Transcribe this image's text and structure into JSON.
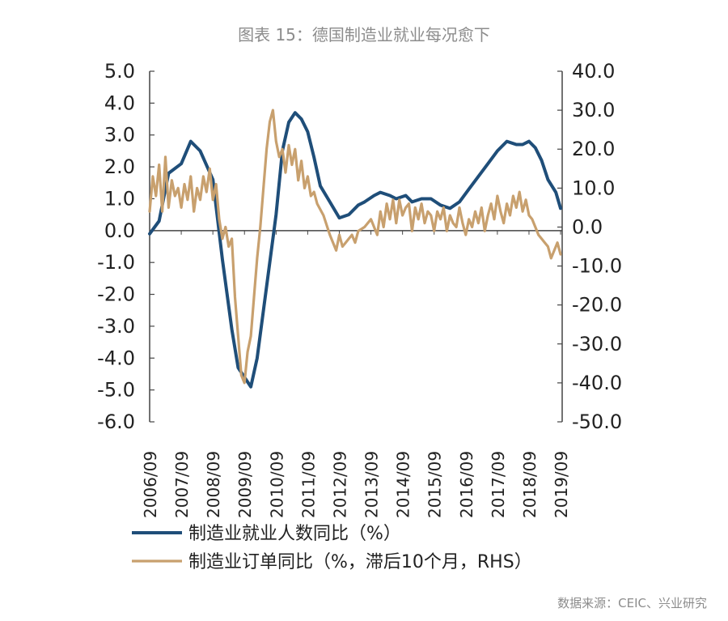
{
  "title": "图表 15：德国制造业就业每况愈下",
  "source": "数据来源：CEIC、兴业研究",
  "chart_data": {
    "type": "line",
    "title": "图表 15：德国制造业就业每况愈下",
    "x_ticks": [
      "2006/09",
      "2007/09",
      "2008/09",
      "2009/09",
      "2010/09",
      "2011/09",
      "2012/09",
      "2013/09",
      "2014/09",
      "2015/09",
      "2016/09",
      "2017/09",
      "2018/09",
      "2019/09"
    ],
    "y_left": {
      "min": -6.0,
      "max": 5.0,
      "ticks": [
        "5.0",
        "4.0",
        "3.0",
        "2.0",
        "1.0",
        "0.0",
        "-1.0",
        "-2.0",
        "-3.0",
        "-4.0",
        "-5.0",
        "-6.0"
      ]
    },
    "y_right": {
      "min": -50.0,
      "max": 40.0,
      "ticks": [
        "40.0",
        "30.0",
        "20.0",
        "10.0",
        "0.0",
        "-10.0",
        "-20.0",
        "-30.0",
        "-40.0",
        "-50.0"
      ]
    },
    "series": [
      {
        "name": "制造业就业人数同比（%）",
        "axis": "left",
        "color": "#1f4e79",
        "x": [
          2006.7,
          2007.0,
          2007.3,
          2007.7,
          2008.0,
          2008.3,
          2008.7,
          2009.0,
          2009.3,
          2009.5,
          2009.7,
          2009.9,
          2010.1,
          2010.3,
          2010.5,
          2010.7,
          2010.9,
          2011.1,
          2011.3,
          2011.5,
          2011.7,
          2011.9,
          2012.1,
          2012.4,
          2012.7,
          2013.0,
          2013.3,
          2013.5,
          2013.8,
          2014.0,
          2014.3,
          2014.5,
          2014.8,
          2015.0,
          2015.3,
          2015.6,
          2015.9,
          2016.2,
          2016.5,
          2016.8,
          2017.1,
          2017.4,
          2017.7,
          2018.0,
          2018.3,
          2018.5,
          2018.7,
          2018.9,
          2019.1,
          2019.3,
          2019.55,
          2019.7
        ],
        "values": [
          -0.1,
          0.3,
          1.8,
          2.1,
          2.8,
          2.5,
          1.6,
          -0.9,
          -3.1,
          -4.3,
          -4.6,
          -4.9,
          -4.0,
          -2.5,
          -1.0,
          0.5,
          2.5,
          3.4,
          3.7,
          3.5,
          3.1,
          2.3,
          1.4,
          0.9,
          0.4,
          0.5,
          0.8,
          0.9,
          1.1,
          1.2,
          1.1,
          1.0,
          1.1,
          0.9,
          1.0,
          1.0,
          0.8,
          0.7,
          0.9,
          1.3,
          1.7,
          2.1,
          2.5,
          2.8,
          2.7,
          2.7,
          2.8,
          2.6,
          2.2,
          1.6,
          1.2,
          0.7
        ]
      },
      {
        "name": "制造业订单同比（%，滞后10个月，RHS）",
        "axis": "right",
        "color": "#c8a06e",
        "x": [
          2006.7,
          2006.8,
          2006.9,
          2007.0,
          2007.1,
          2007.2,
          2007.3,
          2007.4,
          2007.5,
          2007.6,
          2007.7,
          2007.8,
          2007.9,
          2008.0,
          2008.1,
          2008.2,
          2008.3,
          2008.4,
          2008.5,
          2008.6,
          2008.7,
          2008.8,
          2008.9,
          2009.0,
          2009.1,
          2009.2,
          2009.3,
          2009.4,
          2009.5,
          2009.6,
          2009.7,
          2009.8,
          2009.9,
          2010.0,
          2010.1,
          2010.2,
          2010.3,
          2010.4,
          2010.5,
          2010.6,
          2010.7,
          2010.8,
          2010.9,
          2011.0,
          2011.1,
          2011.2,
          2011.3,
          2011.4,
          2011.5,
          2011.6,
          2011.7,
          2011.8,
          2011.9,
          2012.0,
          2012.2,
          2012.4,
          2012.6,
          2012.7,
          2012.8,
          2012.9,
          2013.0,
          2013.1,
          2013.2,
          2013.3,
          2013.5,
          2013.7,
          2013.9,
          2014.0,
          2014.1,
          2014.2,
          2014.3,
          2014.4,
          2014.5,
          2014.6,
          2014.7,
          2014.8,
          2014.9,
          2015.0,
          2015.1,
          2015.2,
          2015.3,
          2015.4,
          2015.5,
          2015.6,
          2015.7,
          2015.8,
          2015.9,
          2016.0,
          2016.1,
          2016.2,
          2016.3,
          2016.4,
          2016.5,
          2016.6,
          2016.7,
          2016.8,
          2016.9,
          2017.0,
          2017.1,
          2017.2,
          2017.3,
          2017.4,
          2017.5,
          2017.6,
          2017.7,
          2017.8,
          2017.9,
          2018.0,
          2018.1,
          2018.2,
          2018.3,
          2018.4,
          2018.5,
          2018.6,
          2018.7,
          2018.8,
          2018.9,
          2019.0,
          2019.1,
          2019.2,
          2019.3,
          2019.4,
          2019.5,
          2019.6,
          2019.7
        ],
        "values": [
          4.0,
          13.0,
          8.0,
          16.0,
          4.0,
          18.0,
          5.0,
          12.0,
          8.0,
          10.0,
          5.0,
          11.0,
          7.0,
          13.0,
          4.0,
          10.0,
          7.0,
          13.0,
          9.0,
          15.0,
          7.0,
          11.0,
          2.0,
          -3.0,
          0.0,
          -5.0,
          -3.0,
          -18.0,
          -28.0,
          -38.0,
          -40.0,
          -32.0,
          -28.0,
          -18.0,
          -8.0,
          0.0,
          10.0,
          20.0,
          27.0,
          30.0,
          22.0,
          18.0,
          20.0,
          14.0,
          21.0,
          16.0,
          20.0,
          12.0,
          17.0,
          10.0,
          13.0,
          8.0,
          9.0,
          6.0,
          3.0,
          -2.0,
          -6.0,
          -2.0,
          -5.0,
          -4.0,
          -3.0,
          -2.0,
          -4.0,
          -1.0,
          0.0,
          2.0,
          -2.0,
          4.0,
          0.0,
          6.0,
          2.0,
          7.0,
          1.0,
          7.0,
          3.0,
          5.0,
          6.0,
          -1.0,
          5.0,
          2.0,
          6.0,
          1.0,
          4.0,
          3.0,
          -1.0,
          4.0,
          2.0,
          5.0,
          -1.0,
          3.0,
          1.0,
          0.0,
          5.0,
          1.0,
          -2.0,
          2.0,
          0.0,
          4.0,
          1.0,
          5.0,
          -1.0,
          3.0,
          6.0,
          2.0,
          8.0,
          4.0,
          1.0,
          6.0,
          3.0,
          8.0,
          5.0,
          9.0,
          4.0,
          7.0,
          3.0,
          2.0,
          0.0,
          -2.0,
          -3.0,
          -4.0,
          -5.0,
          -8.0,
          -6.0,
          -4.0,
          -7.0
        ]
      }
    ]
  }
}
